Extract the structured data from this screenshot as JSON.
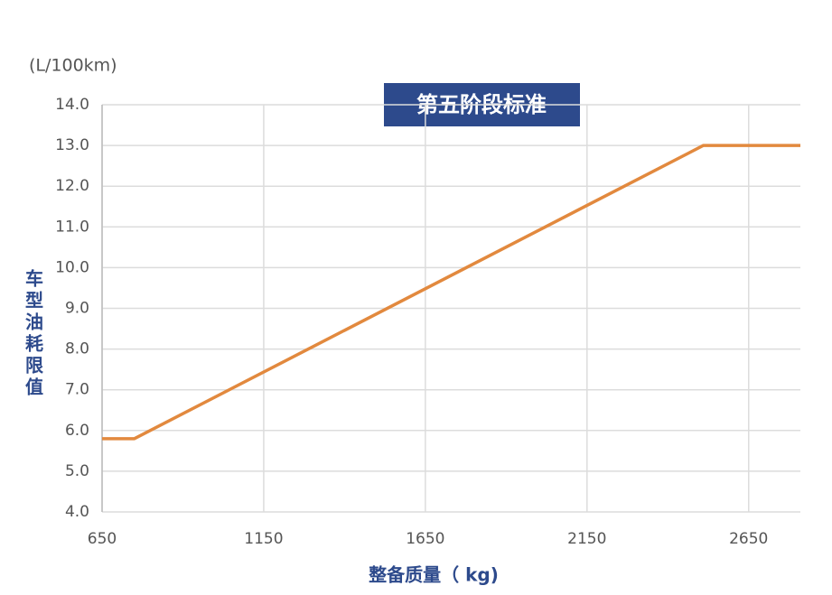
{
  "chart_data": {
    "type": "line",
    "title": "第五阶段标准",
    "y_unit": "(L/100km)",
    "y_label": "车型油耗限值",
    "x_label": "整备质量（ kg)",
    "x": [
      650,
      750,
      2510,
      2810
    ],
    "series": [
      {
        "name": "第五阶段标准",
        "color": "#e2893e",
        "values": [
          5.8,
          5.8,
          13.0,
          13.0
        ]
      }
    ],
    "xlim": [
      650,
      2810
    ],
    "xticks": [
      650,
      1150,
      1650,
      2150,
      2650
    ],
    "ylim": [
      4,
      14
    ],
    "yticks": [
      {
        "value": 4,
        "label": "4.0"
      },
      {
        "value": 5,
        "label": "5.0"
      },
      {
        "value": 6,
        "label": "6.0"
      },
      {
        "value": 7,
        "label": "7.0"
      },
      {
        "value": 8,
        "label": "8.0"
      },
      {
        "value": 9,
        "label": "9.0"
      },
      {
        "value": 10,
        "label": "10.0"
      },
      {
        "value": 11,
        "label": "11.0"
      },
      {
        "value": 12,
        "label": "12.0"
      },
      {
        "value": 13,
        "label": "13.0"
      },
      {
        "value": 14,
        "label": "14.0"
      }
    ],
    "grid": true
  }
}
